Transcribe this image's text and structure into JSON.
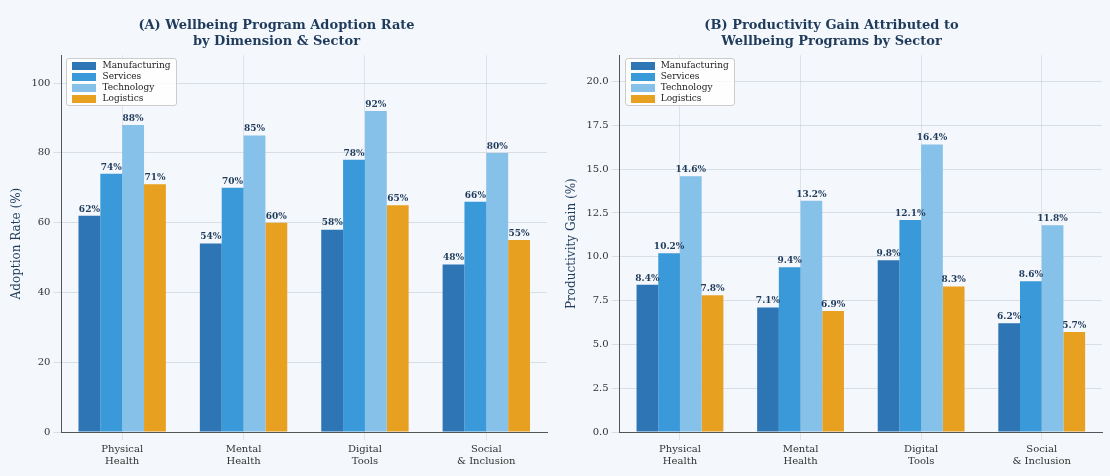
{
  "chart_data": [
    {
      "type": "bar",
      "title": "(A) Wellbeing Program Adoption Rate\nby Dimension & Sector",
      "ylabel": "Adoption Rate (%)",
      "categories": [
        "Physical\nHealth",
        "Mental\nHealth",
        "Digital\nTools",
        "Social\n& Inclusion"
      ],
      "ylim": [
        0,
        108
      ],
      "yticks": [
        0,
        20,
        40,
        60,
        80,
        100
      ],
      "grid": true,
      "legend": "top left",
      "series": [
        {
          "name": "Manufacturing",
          "color": "#2e75b6",
          "values": [
            62,
            54,
            58,
            48
          ],
          "value_labels": [
            "62%",
            "54%",
            "58%",
            "48%"
          ]
        },
        {
          "name": "Services",
          "color": "#3a9ad9",
          "values": [
            74,
            70,
            78,
            66
          ],
          "value_labels": [
            "74%",
            "70%",
            "78%",
            "66%"
          ]
        },
        {
          "name": "Technology",
          "color": "#85c1e9",
          "values": [
            88,
            85,
            92,
            80
          ],
          "value_labels": [
            "88%",
            "85%",
            "92%",
            "80%"
          ]
        },
        {
          "name": "Logistics",
          "color": "#e8a020",
          "values": [
            71,
            60,
            65,
            55
          ],
          "value_labels": [
            "71%",
            "60%",
            "65%",
            "55%"
          ]
        }
      ]
    },
    {
      "type": "bar",
      "title": "(B) Productivity Gain Attributed to\nWellbeing Programs by Sector",
      "ylabel": "Productivity Gain (%)",
      "categories": [
        "Physical\nHealth",
        "Mental\nHealth",
        "Digital\nTools",
        "Social\n& Inclusion"
      ],
      "ylim": [
        0,
        21.5
      ],
      "yticks": [
        {
          "value": 0,
          "label": "0.0"
        },
        {
          "value": 2.5,
          "label": "2.5"
        },
        {
          "value": 5,
          "label": "5.0"
        },
        {
          "value": 7.5,
          "label": "7.5"
        },
        {
          "value": 10,
          "label": "10.0"
        },
        {
          "value": 12.5,
          "label": "12.5"
        },
        {
          "value": 15,
          "label": "15.0"
        },
        {
          "value": 17.5,
          "label": "17.5"
        },
        {
          "value": 20,
          "label": "20.0"
        }
      ],
      "grid": true,
      "legend": "top left",
      "series": [
        {
          "name": "Manufacturing",
          "color": "#2e75b6",
          "values": [
            8.4,
            7.1,
            9.8,
            6.2
          ],
          "value_labels": [
            "8.4%",
            "7.1%",
            "9.8%",
            "6.2%"
          ]
        },
        {
          "name": "Services",
          "color": "#3a9ad9",
          "values": [
            10.2,
            9.4,
            12.1,
            8.6
          ],
          "value_labels": [
            "10.2%",
            "9.4%",
            "12.1%",
            "8.6%"
          ]
        },
        {
          "name": "Technology",
          "color": "#85c1e9",
          "values": [
            14.6,
            13.2,
            16.4,
            11.8
          ],
          "value_labels": [
            "14.6%",
            "13.2%",
            "16.4%",
            "11.8%"
          ]
        },
        {
          "name": "Logistics",
          "color": "#e8a020",
          "values": [
            7.8,
            6.9,
            8.3,
            5.7
          ],
          "value_labels": [
            "7.8%",
            "6.9%",
            "8.3%",
            "5.7%"
          ]
        }
      ]
    }
  ]
}
